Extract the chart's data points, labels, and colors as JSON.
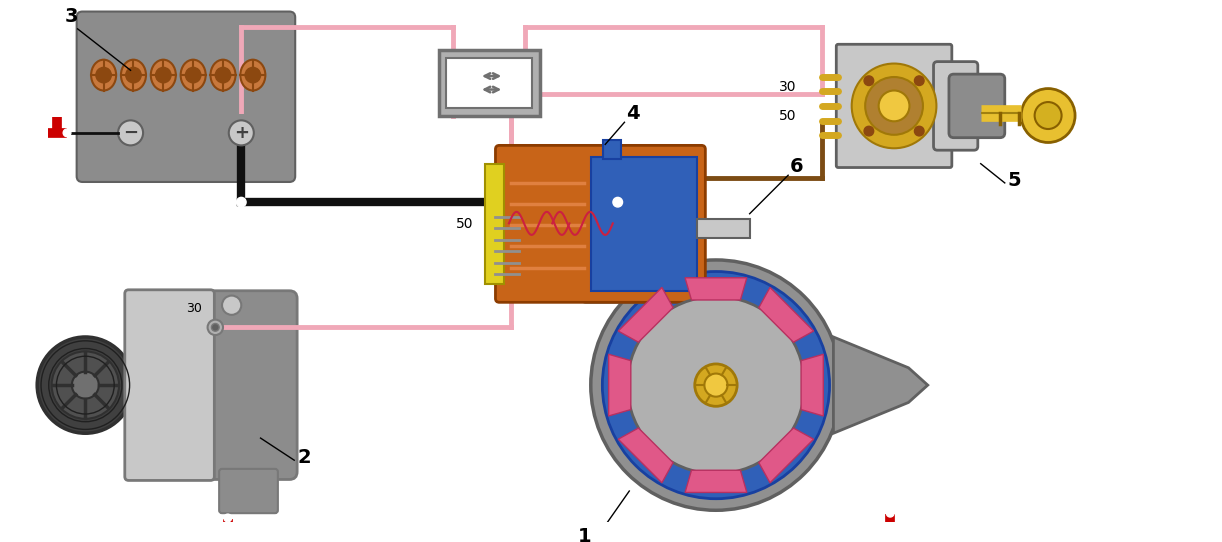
{
  "bg_color": "#ffffff",
  "gray_bat": "#8c8c8c",
  "gray_bat_light": "#aaaaaa",
  "gray_bat_dark": "#606060",
  "gray_alt_body": "#a8a8a8",
  "gray_alt_light": "#c8c8c8",
  "gray_alt_dark": "#787878",
  "gray_starter": "#909090",
  "gray_starter_light": "#b0b0b0",
  "gray_starter_dark": "#606060",
  "orange_cell": "#c8783c",
  "orange_cell_dark": "#8c4810",
  "orange_solenoid": "#c86418",
  "orange_solenoid_dark": "#8c3c00",
  "blue_starter": "#3060b8",
  "blue_starter_dark": "#1840a0",
  "blue_starter_light": "#5080d0",
  "pink_wire": "#f0a8b8",
  "pink_wire2": "#f8c8d8",
  "black_wire": "#101010",
  "brown_wire": "#7c4c14",
  "red_mark": "#cc0000",
  "gold": "#d4a820",
  "gold_dark": "#a07808",
  "gold_light": "#f0c840",
  "yellow_key": "#e8c030",
  "relay_gray": "#b0b0b0",
  "relay_dark": "#707070",
  "label_color": "#000000",
  "figsize": [
    12.22,
    5.42
  ],
  "dpi": 100
}
